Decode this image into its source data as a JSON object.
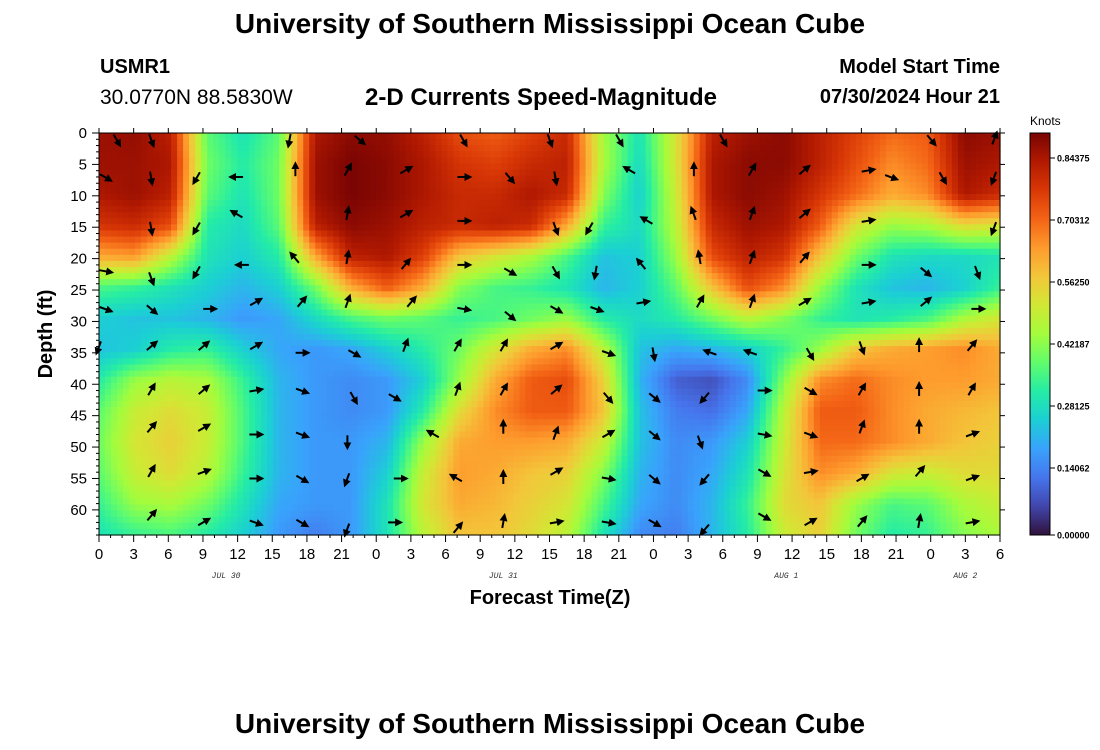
{
  "header": {
    "title": "University of Southern Mississippi Ocean Cube",
    "site_id": "USMR1",
    "site_coords": "30.0770N  88.5830W",
    "subtitle": "2-D Currents Speed-Magnitude",
    "model_start_label": "Model Start Time",
    "model_start_value": "07/30/2024 Hour 21"
  },
  "footer": {
    "title": "University of Southern Mississippi Ocean Cube"
  },
  "chart_data": {
    "type": "heatmap",
    "title": "2-D Currents Speed-Magnitude",
    "xlabel": "Forecast Time(Z)",
    "ylabel": "Depth (ft)",
    "x_range_hours": [
      0,
      78
    ],
    "y_range_ft": [
      0,
      64
    ],
    "x_ticks": [
      "0",
      "3",
      "6",
      "9",
      "12",
      "15",
      "18",
      "21",
      "0",
      "3",
      "6",
      "9",
      "12",
      "15",
      "18",
      "21",
      "0",
      "3",
      "6",
      "9",
      "12",
      "15",
      "18",
      "21",
      "0",
      "3",
      "6"
    ],
    "y_ticks": [
      "0",
      "5",
      "10",
      "15",
      "20",
      "25",
      "30",
      "35",
      "40",
      "45",
      "50",
      "55",
      "60"
    ],
    "date_labels": [
      {
        "label": "JUL 30",
        "hour": 11
      },
      {
        "label": "JUL 31",
        "hour": 35
      },
      {
        "label": "AUG 1",
        "hour": 59.5
      },
      {
        "label": "AUG 2",
        "hour": 75
      }
    ],
    "colorbar": {
      "unit": "Knots",
      "min": 0.0,
      "max": 0.9,
      "tick_labels": [
        "0.84375",
        "0.70312",
        "0.56250",
        "0.42187",
        "0.28125",
        "0.14062",
        "0.00000"
      ],
      "colormap": [
        "#30123b",
        "#4145ab",
        "#4675ed",
        "#39a2fc",
        "#1bcfd4",
        "#24eca6",
        "#61fc6c",
        "#a4fc3c",
        "#d1e834",
        "#f3c63a",
        "#fe9b2d",
        "#f36315",
        "#d93806",
        "#b11901",
        "#7a0403"
      ]
    },
    "speed_grid_knots": [
      [
        0.86,
        0.87,
        0.82,
        0.38,
        0.3,
        0.38,
        0.84,
        0.88,
        0.87,
        0.82,
        0.74,
        0.72,
        0.76,
        0.8,
        0.45,
        0.3,
        0.52,
        0.82,
        0.86,
        0.88,
        0.82,
        0.76,
        0.7,
        0.72,
        0.88,
        0.86
      ],
      [
        0.86,
        0.86,
        0.84,
        0.4,
        0.32,
        0.4,
        0.86,
        0.9,
        0.88,
        0.84,
        0.78,
        0.76,
        0.8,
        0.82,
        0.46,
        0.28,
        0.52,
        0.84,
        0.88,
        0.88,
        0.82,
        0.74,
        0.66,
        0.7,
        0.86,
        0.84
      ],
      [
        0.84,
        0.86,
        0.82,
        0.38,
        0.3,
        0.4,
        0.86,
        0.9,
        0.88,
        0.84,
        0.8,
        0.8,
        0.84,
        0.8,
        0.42,
        0.26,
        0.5,
        0.84,
        0.88,
        0.86,
        0.78,
        0.7,
        0.62,
        0.66,
        0.84,
        0.8
      ],
      [
        0.78,
        0.8,
        0.74,
        0.32,
        0.28,
        0.38,
        0.82,
        0.88,
        0.86,
        0.82,
        0.8,
        0.82,
        0.8,
        0.62,
        0.34,
        0.28,
        0.48,
        0.8,
        0.86,
        0.84,
        0.72,
        0.52,
        0.44,
        0.46,
        0.54,
        0.52
      ],
      [
        0.62,
        0.64,
        0.48,
        0.3,
        0.26,
        0.32,
        0.62,
        0.82,
        0.84,
        0.76,
        0.58,
        0.52,
        0.46,
        0.36,
        0.24,
        0.26,
        0.44,
        0.74,
        0.82,
        0.78,
        0.58,
        0.4,
        0.3,
        0.28,
        0.28,
        0.3
      ],
      [
        0.36,
        0.34,
        0.3,
        0.26,
        0.22,
        0.26,
        0.4,
        0.62,
        0.72,
        0.62,
        0.42,
        0.36,
        0.34,
        0.3,
        0.22,
        0.26,
        0.38,
        0.58,
        0.74,
        0.66,
        0.44,
        0.3,
        0.24,
        0.22,
        0.26,
        0.34
      ],
      [
        0.26,
        0.24,
        0.24,
        0.22,
        0.18,
        0.2,
        0.28,
        0.36,
        0.4,
        0.38,
        0.34,
        0.36,
        0.4,
        0.44,
        0.32,
        0.28,
        0.32,
        0.4,
        0.48,
        0.42,
        0.34,
        0.3,
        0.32,
        0.36,
        0.46,
        0.52
      ],
      [
        0.24,
        0.26,
        0.32,
        0.34,
        0.26,
        0.2,
        0.18,
        0.2,
        0.26,
        0.32,
        0.4,
        0.52,
        0.62,
        0.66,
        0.48,
        0.24,
        0.2,
        0.22,
        0.26,
        0.34,
        0.44,
        0.58,
        0.62,
        0.64,
        0.66,
        0.62
      ],
      [
        0.32,
        0.44,
        0.48,
        0.46,
        0.34,
        0.22,
        0.18,
        0.16,
        0.18,
        0.26,
        0.44,
        0.62,
        0.72,
        0.74,
        0.56,
        0.22,
        0.1,
        0.08,
        0.16,
        0.42,
        0.66,
        0.7,
        0.66,
        0.64,
        0.64,
        0.62
      ],
      [
        0.38,
        0.5,
        0.54,
        0.5,
        0.36,
        0.22,
        0.18,
        0.16,
        0.18,
        0.32,
        0.54,
        0.66,
        0.72,
        0.72,
        0.58,
        0.24,
        0.14,
        0.12,
        0.2,
        0.48,
        0.72,
        0.72,
        0.66,
        0.62,
        0.6,
        0.58
      ],
      [
        0.4,
        0.52,
        0.56,
        0.5,
        0.36,
        0.22,
        0.18,
        0.18,
        0.22,
        0.44,
        0.62,
        0.64,
        0.64,
        0.62,
        0.5,
        0.24,
        0.16,
        0.18,
        0.26,
        0.5,
        0.7,
        0.7,
        0.66,
        0.62,
        0.58,
        0.56
      ],
      [
        0.38,
        0.5,
        0.54,
        0.48,
        0.34,
        0.22,
        0.18,
        0.18,
        0.26,
        0.5,
        0.64,
        0.62,
        0.58,
        0.56,
        0.42,
        0.22,
        0.16,
        0.2,
        0.3,
        0.52,
        0.66,
        0.62,
        0.52,
        0.5,
        0.54,
        0.54
      ],
      [
        0.34,
        0.44,
        0.46,
        0.4,
        0.3,
        0.2,
        0.18,
        0.18,
        0.3,
        0.52,
        0.62,
        0.6,
        0.56,
        0.52,
        0.36,
        0.2,
        0.16,
        0.22,
        0.34,
        0.54,
        0.58,
        0.44,
        0.36,
        0.38,
        0.46,
        0.5
      ],
      [
        0.3,
        0.34,
        0.36,
        0.32,
        0.26,
        0.18,
        0.14,
        0.18,
        0.3,
        0.48,
        0.58,
        0.58,
        0.54,
        0.48,
        0.3,
        0.16,
        0.14,
        0.22,
        0.32,
        0.5,
        0.56,
        0.4,
        0.32,
        0.34,
        0.42,
        0.46
      ]
    ],
    "vectors": [
      {
        "t": 1.5,
        "d": 1,
        "dir": 150
      },
      {
        "t": 4.5,
        "d": 1,
        "dir": 160
      },
      {
        "t": 16.5,
        "d": 1,
        "dir": 190
      },
      {
        "t": 22.5,
        "d": 1,
        "dir": 130
      },
      {
        "t": 31.5,
        "d": 1,
        "dir": 150
      },
      {
        "t": 39,
        "d": 1,
        "dir": 160
      },
      {
        "t": 45,
        "d": 1,
        "dir": 150
      },
      {
        "t": 54,
        "d": 1,
        "dir": 150
      },
      {
        "t": 72,
        "d": 1,
        "dir": 140
      },
      {
        "t": 77.5,
        "d": 1,
        "dir": 20
      },
      {
        "t": 0.5,
        "d": 7,
        "dir": 120
      },
      {
        "t": 4.5,
        "d": 7,
        "dir": 170
      },
      {
        "t": 8.5,
        "d": 7,
        "dir": 210
      },
      {
        "t": 12,
        "d": 7,
        "dir": 270
      },
      {
        "t": 17,
        "d": 6,
        "dir": 0
      },
      {
        "t": 21.5,
        "d": 6,
        "dir": 30
      },
      {
        "t": 26.5,
        "d": 6,
        "dir": 60
      },
      {
        "t": 31.5,
        "d": 7,
        "dir": 90
      },
      {
        "t": 35.5,
        "d": 7,
        "dir": 140
      },
      {
        "t": 39.5,
        "d": 7,
        "dir": 170
      },
      {
        "t": 46,
        "d": 6,
        "dir": 300
      },
      {
        "t": 51.5,
        "d": 6,
        "dir": 0
      },
      {
        "t": 56.5,
        "d": 6,
        "dir": 30
      },
      {
        "t": 61,
        "d": 6,
        "dir": 50
      },
      {
        "t": 66.5,
        "d": 6,
        "dir": 80
      },
      {
        "t": 68.5,
        "d": 7,
        "dir": 110
      },
      {
        "t": 73,
        "d": 7,
        "dir": 150
      },
      {
        "t": 77.5,
        "d": 7,
        "dir": 200
      },
      {
        "t": 4.5,
        "d": 15,
        "dir": 170
      },
      {
        "t": 8.5,
        "d": 15,
        "dir": 210
      },
      {
        "t": 12,
        "d": 13,
        "dir": 300
      },
      {
        "t": 21.5,
        "d": 13,
        "dir": 10
      },
      {
        "t": 26.5,
        "d": 13,
        "dir": 60
      },
      {
        "t": 31.5,
        "d": 14,
        "dir": 90
      },
      {
        "t": 39.5,
        "d": 15,
        "dir": 160
      },
      {
        "t": 42.5,
        "d": 15,
        "dir": 210
      },
      {
        "t": 47.5,
        "d": 14,
        "dir": 300
      },
      {
        "t": 51.5,
        "d": 13,
        "dir": 340
      },
      {
        "t": 56.5,
        "d": 13,
        "dir": 20
      },
      {
        "t": 61,
        "d": 13,
        "dir": 50
      },
      {
        "t": 66.5,
        "d": 14,
        "dir": 80
      },
      {
        "t": 77.5,
        "d": 15,
        "dir": 200
      },
      {
        "t": 0.5,
        "d": 22,
        "dir": 100
      },
      {
        "t": 4.5,
        "d": 23,
        "dir": 160
      },
      {
        "t": 8.5,
        "d": 22,
        "dir": 210
      },
      {
        "t": 12.5,
        "d": 21,
        "dir": 270
      },
      {
        "t": 17,
        "d": 20,
        "dir": 320
      },
      {
        "t": 21.5,
        "d": 20,
        "dir": 10
      },
      {
        "t": 26.5,
        "d": 21,
        "dir": 40
      },
      {
        "t": 31.5,
        "d": 21,
        "dir": 90
      },
      {
        "t": 35.5,
        "d": 22,
        "dir": 120
      },
      {
        "t": 39.5,
        "d": 22,
        "dir": 150
      },
      {
        "t": 43,
        "d": 22,
        "dir": 190
      },
      {
        "t": 47,
        "d": 21,
        "dir": 320
      },
      {
        "t": 52,
        "d": 20,
        "dir": 350
      },
      {
        "t": 56.5,
        "d": 20,
        "dir": 20
      },
      {
        "t": 61,
        "d": 20,
        "dir": 40
      },
      {
        "t": 66.5,
        "d": 21,
        "dir": 90
      },
      {
        "t": 71.5,
        "d": 22,
        "dir": 130
      },
      {
        "t": 76,
        "d": 22,
        "dir": 160
      },
      {
        "t": 0.5,
        "d": 28,
        "dir": 110
      },
      {
        "t": 4.5,
        "d": 28,
        "dir": 130
      },
      {
        "t": 9.5,
        "d": 28,
        "dir": 90
      },
      {
        "t": 13.5,
        "d": 27,
        "dir": 60
      },
      {
        "t": 17.5,
        "d": 27,
        "dir": 40
      },
      {
        "t": 21.5,
        "d": 27,
        "dir": 20
      },
      {
        "t": 27,
        "d": 27,
        "dir": 40
      },
      {
        "t": 31.5,
        "d": 28,
        "dir": 100
      },
      {
        "t": 35.5,
        "d": 29,
        "dir": 130
      },
      {
        "t": 39.5,
        "d": 28,
        "dir": 120
      },
      {
        "t": 43,
        "d": 28,
        "dir": 110
      },
      {
        "t": 47,
        "d": 27,
        "dir": 80
      },
      {
        "t": 52,
        "d": 27,
        "dir": 30
      },
      {
        "t": 56.5,
        "d": 27,
        "dir": 20
      },
      {
        "t": 61,
        "d": 27,
        "dir": 60
      },
      {
        "t": 66.5,
        "d": 27,
        "dir": 80
      },
      {
        "t": 71.5,
        "d": 27,
        "dir": 50
      },
      {
        "t": 76,
        "d": 28,
        "dir": 90
      },
      {
        "t": 0,
        "d": 34,
        "dir": 200
      },
      {
        "t": 4.5,
        "d": 34,
        "dir": 50
      },
      {
        "t": 9,
        "d": 34,
        "dir": 50
      },
      {
        "t": 13.5,
        "d": 34,
        "dir": 60
      },
      {
        "t": 17.5,
        "d": 35,
        "dir": 90
      },
      {
        "t": 22,
        "d": 35,
        "dir": 120
      },
      {
        "t": 26.5,
        "d": 34,
        "dir": 20
      },
      {
        "t": 31,
        "d": 34,
        "dir": 30
      },
      {
        "t": 35,
        "d": 34,
        "dir": 30
      },
      {
        "t": 39.5,
        "d": 34,
        "dir": 60
      },
      {
        "t": 44,
        "d": 35,
        "dir": 110
      },
      {
        "t": 48,
        "d": 35,
        "dir": 170
      },
      {
        "t": 53,
        "d": 35,
        "dir": 290
      },
      {
        "t": 56.5,
        "d": 35,
        "dir": 290
      },
      {
        "t": 61.5,
        "d": 35,
        "dir": 150
      },
      {
        "t": 66,
        "d": 34,
        "dir": 160
      },
      {
        "t": 71,
        "d": 34,
        "dir": 0
      },
      {
        "t": 75.5,
        "d": 34,
        "dir": 40
      },
      {
        "t": 4.5,
        "d": 41,
        "dir": 30
      },
      {
        "t": 9,
        "d": 41,
        "dir": 50
      },
      {
        "t": 13.5,
        "d": 41,
        "dir": 80
      },
      {
        "t": 17.5,
        "d": 41,
        "dir": 110
      },
      {
        "t": 22,
        "d": 42,
        "dir": 150
      },
      {
        "t": 25.5,
        "d": 42,
        "dir": 120
      },
      {
        "t": 31,
        "d": 41,
        "dir": 20
      },
      {
        "t": 35,
        "d": 41,
        "dir": 30
      },
      {
        "t": 39.5,
        "d": 41,
        "dir": 50
      },
      {
        "t": 44,
        "d": 42,
        "dir": 140
      },
      {
        "t": 48,
        "d": 42,
        "dir": 130
      },
      {
        "t": 52.5,
        "d": 42,
        "dir": 220
      },
      {
        "t": 57.5,
        "d": 41,
        "dir": 90
      },
      {
        "t": 61.5,
        "d": 41,
        "dir": 120
      },
      {
        "t": 66,
        "d": 41,
        "dir": 30
      },
      {
        "t": 71,
        "d": 41,
        "dir": 0
      },
      {
        "t": 75.5,
        "d": 41,
        "dir": 30
      },
      {
        "t": 4.5,
        "d": 47,
        "dir": 40
      },
      {
        "t": 9,
        "d": 47,
        "dir": 60
      },
      {
        "t": 13.5,
        "d": 48,
        "dir": 90
      },
      {
        "t": 17.5,
        "d": 48,
        "dir": 110
      },
      {
        "t": 21.5,
        "d": 49,
        "dir": 180
      },
      {
        "t": 29,
        "d": 48,
        "dir": 300
      },
      {
        "t": 35,
        "d": 47,
        "dir": 0
      },
      {
        "t": 39.5,
        "d": 48,
        "dir": 20
      },
      {
        "t": 44,
        "d": 48,
        "dir": 60
      },
      {
        "t": 48,
        "d": 48,
        "dir": 130
      },
      {
        "t": 52,
        "d": 49,
        "dir": 160
      },
      {
        "t": 57.5,
        "d": 48,
        "dir": 100
      },
      {
        "t": 61.5,
        "d": 48,
        "dir": 110
      },
      {
        "t": 66,
        "d": 47,
        "dir": 20
      },
      {
        "t": 71,
        "d": 47,
        "dir": 0
      },
      {
        "t": 75.5,
        "d": 48,
        "dir": 70
      },
      {
        "t": 4.5,
        "d": 54,
        "dir": 30
      },
      {
        "t": 9,
        "d": 54,
        "dir": 70
      },
      {
        "t": 13.5,
        "d": 55,
        "dir": 90
      },
      {
        "t": 17.5,
        "d": 55,
        "dir": 120
      },
      {
        "t": 21.5,
        "d": 55,
        "dir": 200
      },
      {
        "t": 26,
        "d": 55,
        "dir": 90
      },
      {
        "t": 31,
        "d": 55,
        "dir": 300
      },
      {
        "t": 35,
        "d": 55,
        "dir": 0
      },
      {
        "t": 39.5,
        "d": 54,
        "dir": 60
      },
      {
        "t": 44,
        "d": 55,
        "dir": 100
      },
      {
        "t": 48,
        "d": 55,
        "dir": 130
      },
      {
        "t": 52.5,
        "d": 55,
        "dir": 220
      },
      {
        "t": 57.5,
        "d": 54,
        "dir": 120
      },
      {
        "t": 61.5,
        "d": 54,
        "dir": 80
      },
      {
        "t": 66,
        "d": 55,
        "dir": 60
      },
      {
        "t": 71,
        "d": 54,
        "dir": 40
      },
      {
        "t": 75.5,
        "d": 55,
        "dir": 70
      },
      {
        "t": 4.5,
        "d": 61,
        "dir": 40
      },
      {
        "t": 9,
        "d": 62,
        "dir": 60
      },
      {
        "t": 13.5,
        "d": 62,
        "dir": 110
      },
      {
        "t": 17.5,
        "d": 62,
        "dir": 120
      },
      {
        "t": 21.5,
        "d": 63,
        "dir": 200
      },
      {
        "t": 25.5,
        "d": 62,
        "dir": 90
      },
      {
        "t": 31,
        "d": 63,
        "dir": 40
      },
      {
        "t": 35,
        "d": 62,
        "dir": 10
      },
      {
        "t": 39.5,
        "d": 62,
        "dir": 80
      },
      {
        "t": 44,
        "d": 62,
        "dir": 100
      },
      {
        "t": 48,
        "d": 62,
        "dir": 120
      },
      {
        "t": 52.5,
        "d": 63,
        "dir": 220
      },
      {
        "t": 57.5,
        "d": 61,
        "dir": 120
      },
      {
        "t": 61.5,
        "d": 62,
        "dir": 60
      },
      {
        "t": 66,
        "d": 62,
        "dir": 40
      },
      {
        "t": 71,
        "d": 62,
        "dir": 10
      },
      {
        "t": 75.5,
        "d": 62,
        "dir": 80
      }
    ]
  }
}
